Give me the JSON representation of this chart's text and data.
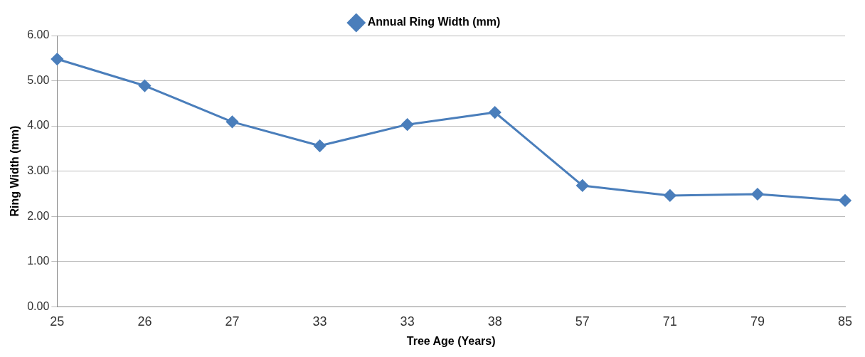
{
  "chart_data": {
    "type": "line",
    "xlabel": "Tree Age (Years)",
    "ylabel": "Ring Width (mm)",
    "categories": [
      "25",
      "26",
      "27",
      "33",
      "33",
      "38",
      "57",
      "71",
      "79",
      "85"
    ],
    "series": [
      {
        "name": "Annual Ring Width (mm)",
        "color": "#4a7ebb",
        "values": [
          5.48,
          4.89,
          4.09,
          3.56,
          4.03,
          4.3,
          2.68,
          2.46,
          2.49,
          2.35
        ]
      }
    ],
    "ylim": [
      0,
      6
    ],
    "yticks": [
      {
        "value": 0,
        "label": "0.00"
      },
      {
        "value": 1,
        "label": "1.00"
      },
      {
        "value": 2,
        "label": "2.00"
      },
      {
        "value": 3,
        "label": "3.00"
      },
      {
        "value": 4,
        "label": "4.00"
      },
      {
        "value": 5,
        "label": "5.00"
      },
      {
        "value": 6,
        "label": "6.00"
      }
    ],
    "grid": "y",
    "legend": "top",
    "marker": "diamond",
    "line_style": "solid"
  }
}
